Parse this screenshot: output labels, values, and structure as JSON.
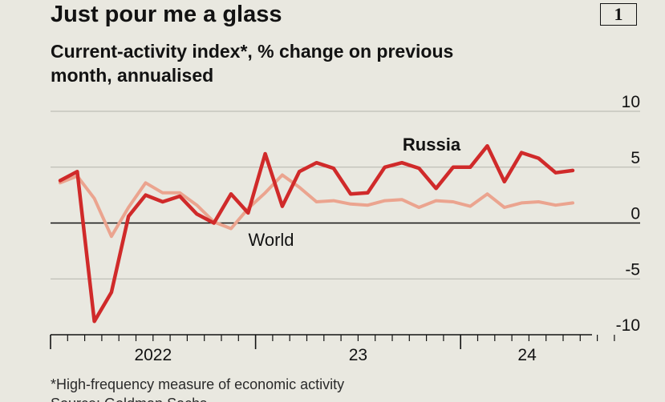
{
  "header": {
    "title": "Just pour me a glass",
    "chart_number": "1",
    "subtitle": "Current-activity index*, % change on previous month, annualised"
  },
  "footer": {
    "note": "*High-frequency measure of economic activity",
    "source": "Source: Goldman Sachs"
  },
  "colors": {
    "background": "#e9e8e0",
    "russia": "#d02a2a",
    "world": "#eba48f",
    "gridline": "#b4b4ac",
    "axis": "#121212"
  },
  "chart_data": {
    "type": "line",
    "title": "Just pour me a glass",
    "subtitle": "Current-activity index*, % change on previous month, annualised",
    "xlabel": "",
    "ylabel": "",
    "ylim": [
      -10,
      10
    ],
    "yticks": [
      10,
      5,
      0,
      -5,
      -10
    ],
    "grid": true,
    "x_tick_labels": [
      "2022",
      "23",
      "24"
    ],
    "x": [
      "2021-09",
      "2021-10",
      "2021-11",
      "2021-12",
      "2022-01",
      "2022-02",
      "2022-03",
      "2022-04",
      "2022-05",
      "2022-06",
      "2022-07",
      "2022-08",
      "2022-09",
      "2022-10",
      "2022-11",
      "2022-12",
      "2023-01",
      "2023-02",
      "2023-03",
      "2023-04",
      "2023-05",
      "2023-06",
      "2023-07",
      "2023-08",
      "2023-09",
      "2023-10",
      "2023-11",
      "2023-12",
      "2024-01",
      "2024-02",
      "2024-03",
      "2024-04",
      "2024-05",
      "2024-06",
      "2024-07",
      "2024-08",
      "2024-09",
      "2024-10",
      "2024-11",
      "2024-12",
      "2025-01"
    ],
    "series": [
      {
        "name": "Russia",
        "color": "#d02a2a",
        "values": [
          3.8,
          4.6,
          -8.8,
          -6.2,
          0.6,
          2.5,
          1.9,
          2.4,
          0.8,
          0.0,
          2.6,
          0.9,
          6.2,
          1.5,
          4.6,
          5.4,
          4.9,
          2.6,
          2.7,
          5.0,
          5.4,
          4.9,
          3.1,
          5.0,
          5.0,
          6.9,
          3.7,
          6.3,
          5.8,
          4.5,
          4.7,
          null,
          null,
          null,
          null,
          null,
          null,
          null,
          null,
          null,
          null
        ]
      },
      {
        "name": "World",
        "color": "#eba48f",
        "values": [
          3.6,
          4.2,
          2.2,
          -1.2,
          1.4,
          3.6,
          2.7,
          2.7,
          1.6,
          0.1,
          -0.5,
          1.3,
          2.7,
          4.3,
          3.2,
          1.9,
          2.0,
          1.7,
          1.6,
          2.0,
          2.1,
          1.4,
          2.0,
          1.9,
          1.5,
          2.6,
          1.4,
          1.8,
          1.9,
          1.6,
          1.8,
          null,
          null,
          null,
          null,
          null,
          null,
          null,
          null,
          null,
          null
        ]
      }
    ]
  }
}
